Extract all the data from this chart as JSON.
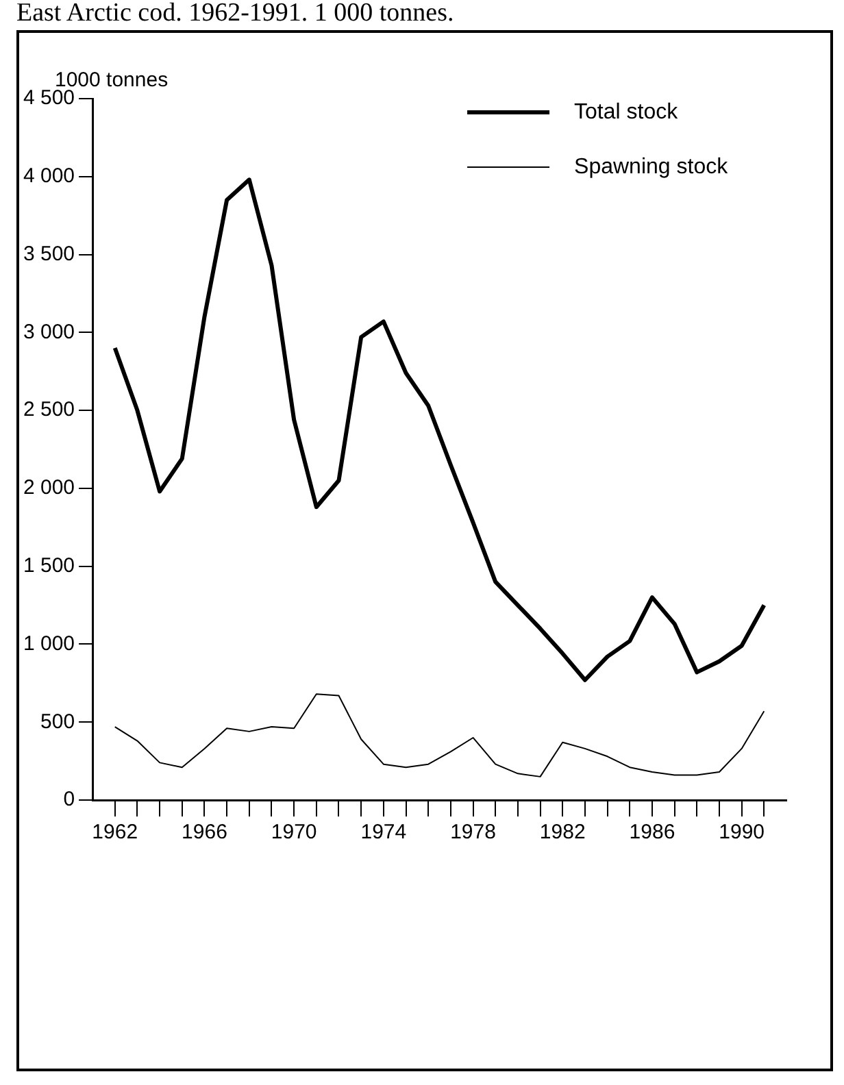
{
  "chart_data": {
    "type": "line",
    "title": "East Arctic cod. 1962-1991. 1 000 tonnes.",
    "ylabel": "1000 tonnes",
    "x": [
      1962,
      1963,
      1964,
      1965,
      1966,
      1967,
      1968,
      1969,
      1970,
      1971,
      1972,
      1973,
      1974,
      1975,
      1976,
      1977,
      1978,
      1979,
      1980,
      1981,
      1982,
      1983,
      1984,
      1985,
      1986,
      1987,
      1988,
      1989,
      1990,
      1991
    ],
    "series": [
      {
        "name": "Total stock",
        "color": "#000000",
        "values": [
          2900,
          2500,
          1980,
          2190,
          3100,
          3850,
          3980,
          3430,
          2440,
          1880,
          2050,
          2970,
          3070,
          2740,
          2530,
          2150,
          1780,
          1400,
          1250,
          1100,
          940,
          770,
          920,
          1020,
          1300,
          1130,
          820,
          890,
          990,
          1250
        ]
      },
      {
        "name": "Spawning stock",
        "color": "#000000",
        "values": [
          470,
          380,
          240,
          210,
          330,
          460,
          440,
          470,
          460,
          680,
          670,
          390,
          230,
          210,
          230,
          310,
          400,
          230,
          170,
          150,
          370,
          330,
          280,
          210,
          180,
          160,
          160,
          180,
          330,
          570
        ]
      }
    ],
    "xlim": [
      1961,
      1992
    ],
    "xticks": [
      {
        "value": 1962,
        "label": "1962"
      },
      {
        "value": 1963,
        "label": null
      },
      {
        "value": 1964,
        "label": null
      },
      {
        "value": 1965,
        "label": null
      },
      {
        "value": 1966,
        "label": "1966"
      },
      {
        "value": 1967,
        "label": null
      },
      {
        "value": 1968,
        "label": null
      },
      {
        "value": 1969,
        "label": null
      },
      {
        "value": 1970,
        "label": "1970"
      },
      {
        "value": 1971,
        "label": null
      },
      {
        "value": 1972,
        "label": null
      },
      {
        "value": 1973,
        "label": null
      },
      {
        "value": 1974,
        "label": "1974"
      },
      {
        "value": 1975,
        "label": null
      },
      {
        "value": 1976,
        "label": null
      },
      {
        "value": 1977,
        "label": null
      },
      {
        "value": 1978,
        "label": "1978"
      },
      {
        "value": 1979,
        "label": null
      },
      {
        "value": 1980,
        "label": null
      },
      {
        "value": 1981,
        "label": null
      },
      {
        "value": 1982,
        "label": "1982"
      },
      {
        "value": 1983,
        "label": null
      },
      {
        "value": 1984,
        "label": null
      },
      {
        "value": 1985,
        "label": null
      },
      {
        "value": 1986,
        "label": "1986"
      },
      {
        "value": 1987,
        "label": null
      },
      {
        "value": 1988,
        "label": null
      },
      {
        "value": 1989,
        "label": null
      },
      {
        "value": 1990,
        "label": "1990"
      },
      {
        "value": 1991,
        "label": null
      }
    ],
    "ylim": [
      0,
      4500
    ],
    "yticks": [
      0,
      {
        "value": 500,
        "label": "500"
      },
      {
        "value": 1000,
        "label": "1 000"
      },
      {
        "value": 1500,
        "label": "1 500"
      },
      {
        "value": 2000,
        "label": "2 000"
      },
      {
        "value": 2500,
        "label": "2 500"
      },
      {
        "value": 3000,
        "label": "3 000"
      },
      {
        "value": 3500,
        "label": "3 500"
      },
      {
        "value": 4000,
        "label": "4 000"
      },
      {
        "value": 4500,
        "label": "4 500"
      }
    ],
    "grid": false,
    "legend": "top right",
    "marker": "none",
    "line_style": "solid"
  }
}
